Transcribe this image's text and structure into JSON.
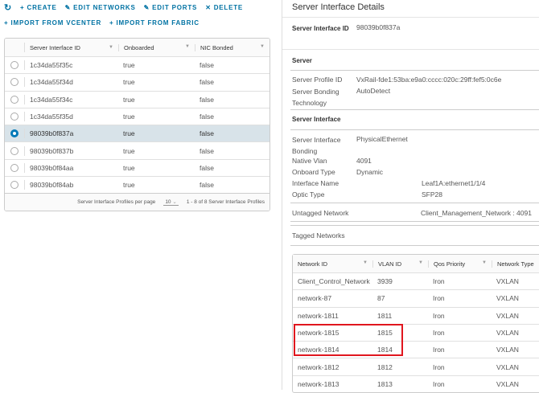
{
  "toolbar": {
    "refresh_icon": "refresh-icon",
    "create": "CREATE",
    "edit_networks": "EDIT NETWORKS",
    "edit_ports": "EDIT PORTS",
    "delete": "DELETE",
    "import_vcenter": "IMPORT FROM VCENTER",
    "import_fabric": "IMPORT FROM FABRIC"
  },
  "grid": {
    "columns": [
      "Server Interface ID",
      "Onboarded",
      "NIC Bonded"
    ],
    "rows": [
      {
        "id": "1c34da55f35c",
        "onboarded": "true",
        "bonded": "false",
        "selected": false
      },
      {
        "id": "1c34da55f34d",
        "onboarded": "true",
        "bonded": "false",
        "selected": false
      },
      {
        "id": "1c34da55f34c",
        "onboarded": "true",
        "bonded": "false",
        "selected": false
      },
      {
        "id": "1c34da55f35d",
        "onboarded": "true",
        "bonded": "false",
        "selected": false
      },
      {
        "id": "98039b0f837a",
        "onboarded": "true",
        "bonded": "false",
        "selected": true
      },
      {
        "id": "98039b0f837b",
        "onboarded": "true",
        "bonded": "false",
        "selected": false
      },
      {
        "id": "98039b0f84aa",
        "onboarded": "true",
        "bonded": "false",
        "selected": false
      },
      {
        "id": "98039b0f84ab",
        "onboarded": "true",
        "bonded": "false",
        "selected": false
      }
    ],
    "footer": {
      "per_page_label": "Server Interface Profiles per page",
      "per_page": "10",
      "range": "1 - 8 of 8 Server Interface Profiles"
    }
  },
  "details": {
    "title": "Server Interface Details",
    "sid_label": "Server Interface ID",
    "sid_value": "98039b0f837a",
    "server_heading": "Server",
    "profile_label": "Server Profile ID",
    "profile_value": "VxRail-fde1:53ba:e9a0:cccc:020c:29ff:fef5:0c6e",
    "bonding_tech_label": "Server Bonding Technology",
    "bonding_tech_value": "AutoDetect",
    "si_heading": "Server Interface",
    "si_bonding_label": "Server Interface Bonding",
    "si_bonding_value": "PhysicalEthernet",
    "native_vlan_label": "Native Vlan",
    "native_vlan_value": "4091",
    "onboard_type_label": "Onboard Type",
    "onboard_type_value": "Dynamic",
    "iface_label": "Interface Name",
    "iface_value": "Leaf1A:ethernet1/1/4",
    "optic_label": "Optic Type",
    "optic_value": "SFP28",
    "untagged_label": "Untagged Network",
    "untagged_value": "Client_Management_Network : 4091",
    "tagged_heading": "Tagged Networks"
  },
  "networks": {
    "columns": [
      "Network ID",
      "VLAN ID",
      "Qos Priority",
      "Network Type"
    ],
    "rows": [
      [
        "Client_Control_Network",
        "3939",
        "Iron",
        "VXLAN"
      ],
      [
        "network-87",
        "87",
        "Iron",
        "VXLAN"
      ],
      [
        "network-1811",
        "1811",
        "Iron",
        "VXLAN"
      ],
      [
        "network-1815",
        "1815",
        "Iron",
        "VXLAN"
      ],
      [
        "network-1814",
        "1814",
        "Iron",
        "VXLAN"
      ],
      [
        "network-1812",
        "1812",
        "Iron",
        "VXLAN"
      ],
      [
        "network-1813",
        "1813",
        "Iron",
        "VXLAN"
      ]
    ]
  },
  "highlight_color": "#e0161e",
  "accent_color": "#0072a3"
}
